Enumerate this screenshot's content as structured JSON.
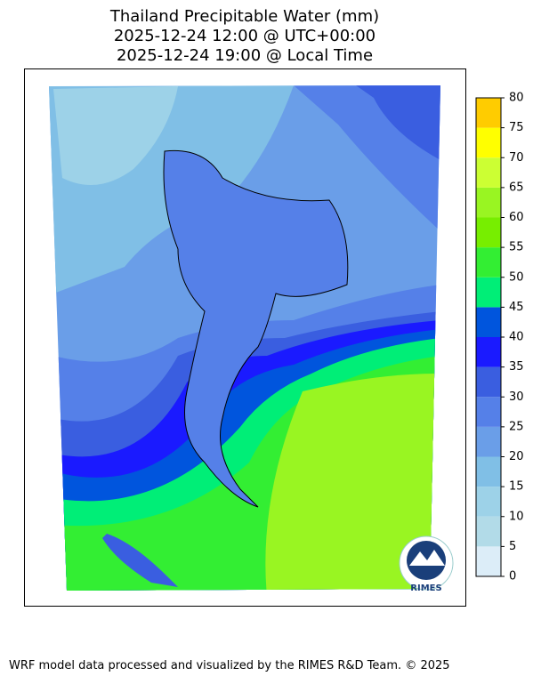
{
  "title": [
    "Thailand Precipitable Water (mm)",
    "2025-12-24 12:00 @ UTC+00:00",
    "2025-12-24 19:00 @ Local Time"
  ],
  "colorbar": {
    "ticks": [
      0,
      5,
      10,
      15,
      20,
      25,
      30,
      35,
      40,
      45,
      50,
      55,
      60,
      65,
      70,
      75,
      80
    ],
    "colors": [
      "#dcedf8",
      "#b2dbe8",
      "#9dd2e8",
      "#80bfe6",
      "#6a9ee8",
      "#5580e8",
      "#3a5ee0",
      "#1a1aff",
      "#0055dd",
      "#00ee77",
      "#33ee33",
      "#77ee00",
      "#99f522",
      "#ccff33",
      "#ffff00",
      "#ffcc00"
    ]
  },
  "logo": "RIMES",
  "footer": "WRF model data processed and visualized by the RIMES R&D Team. © 2025"
}
